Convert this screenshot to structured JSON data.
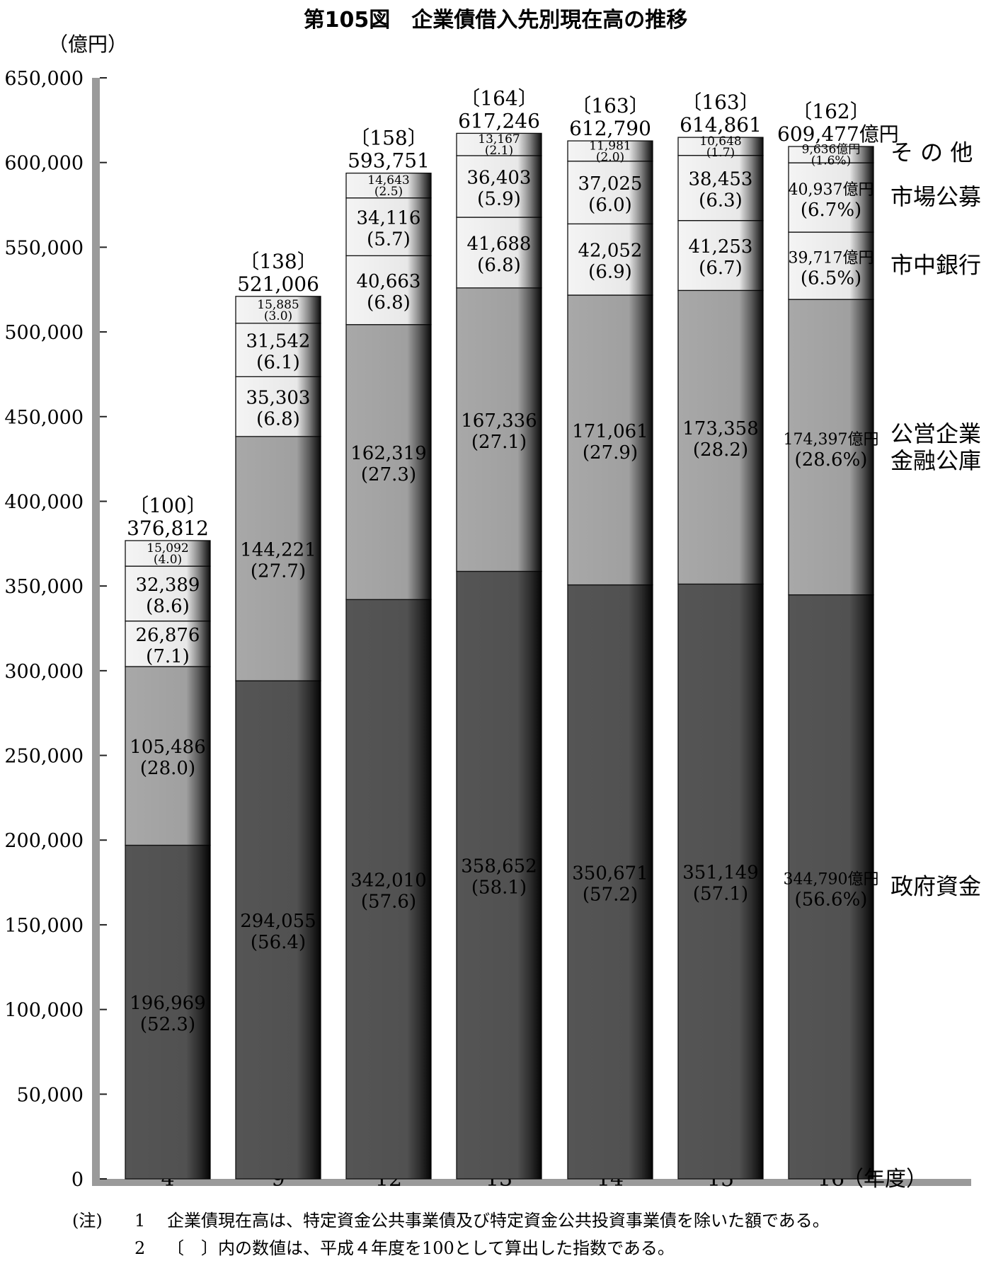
{
  "chart_data": {
    "type": "bar",
    "stacked": true,
    "title": "第105図　企業債借入先別現在高の推移",
    "y_unit": "（億円）",
    "ylim": [
      0,
      650000
    ],
    "yticks": [
      "0",
      "50,000",
      "100,000",
      "150,000",
      "200,000",
      "250,000",
      "300,000",
      "350,000",
      "400,000",
      "450,000",
      "500,000",
      "550,000",
      "600,000",
      "650,000"
    ],
    "categories": [
      "4",
      "9",
      "12",
      "13",
      "14",
      "15",
      "16"
    ],
    "x_suffix": "（年度）",
    "totals": [
      376812,
      521006,
      593751,
      617246,
      612790,
      614861,
      609477
    ],
    "total_labels": [
      "376,812",
      "521,006",
      "593,751",
      "617,246",
      "612,790",
      "614,861",
      "609,477億円"
    ],
    "index_labels": [
      "〔100〕",
      "〔138〕",
      "〔158〕",
      "〔164〕",
      "〔163〕",
      "〔163〕",
      "〔162〕"
    ],
    "series": [
      {
        "name": "政府資金",
        "color": "#555555",
        "values": [
          196969,
          294055,
          342010,
          358652,
          350671,
          351149,
          344790
        ],
        "value_labels": [
          "196,969",
          "294,055",
          "342,010",
          "358,652",
          "350,671",
          "351,149",
          "344,790億円"
        ],
        "pct_labels": [
          "(52.3)",
          "(56.4)",
          "(57.6)",
          "(58.1)",
          "(57.2)",
          "(57.1)",
          "(56.6%)"
        ]
      },
      {
        "name": "公営企業金融公庫",
        "label_lines": [
          "公営企業",
          "金融公庫"
        ],
        "color": "#a8a8a8",
        "values": [
          105486,
          144221,
          162319,
          167336,
          171061,
          173358,
          174397
        ],
        "value_labels": [
          "105,486",
          "144,221",
          "162,319",
          "167,336",
          "171,061",
          "173,358",
          "174,397億円"
        ],
        "pct_labels": [
          "(28.0)",
          "(27.7)",
          "(27.3)",
          "(27.1)",
          "(27.9)",
          "(28.2)",
          "(28.6%)"
        ]
      },
      {
        "name": "市中銀行",
        "color": "#f4f4f4",
        "values": [
          26876,
          35303,
          40663,
          41688,
          42052,
          41253,
          39717
        ],
        "value_labels": [
          "26,876",
          "35,303",
          "40,663",
          "41,688",
          "42,052",
          "41,253",
          "39,717億円"
        ],
        "pct_labels": [
          "(7.1)",
          "(6.8)",
          "(6.8)",
          "(6.8)",
          "(6.9)",
          "(6.7)",
          "(6.5%)"
        ]
      },
      {
        "name": "市場公募",
        "color": "#f4f4f4",
        "values": [
          32389,
          31542,
          34116,
          36403,
          37025,
          38453,
          40937
        ],
        "value_labels": [
          "32,389",
          "31,542",
          "34,116",
          "36,403",
          "37,025",
          "38,453",
          "40,937億円"
        ],
        "pct_labels": [
          "(8.6)",
          "(6.1)",
          "(5.7)",
          "(5.9)",
          "(6.0)",
          "(6.3)",
          "(6.7%)"
        ]
      },
      {
        "name": "そ の 他",
        "color": "#f4f4f4",
        "values": [
          15092,
          15885,
          14643,
          13167,
          11981,
          10648,
          9636
        ],
        "value_labels": [
          "15,092",
          "15,885",
          "14,643",
          "13,167",
          "11,981",
          "10,648",
          "9,636億円"
        ],
        "pct_labels": [
          "(4.0)",
          "(3.0)",
          "(2.5)",
          "(2.1)",
          "(2.0)",
          "(1.7)",
          "(1.6%)"
        ]
      }
    ],
    "notes": [
      {
        "mark": "(注)",
        "num": "1",
        "text": "企業債現在高は、特定資金公共事業債及び特定資金公共投資事業債を除いた額である。"
      },
      {
        "mark": "",
        "num": "2",
        "text": "〔　〕内の数値は、平成４年度を100として算出した指数である。"
      }
    ]
  }
}
